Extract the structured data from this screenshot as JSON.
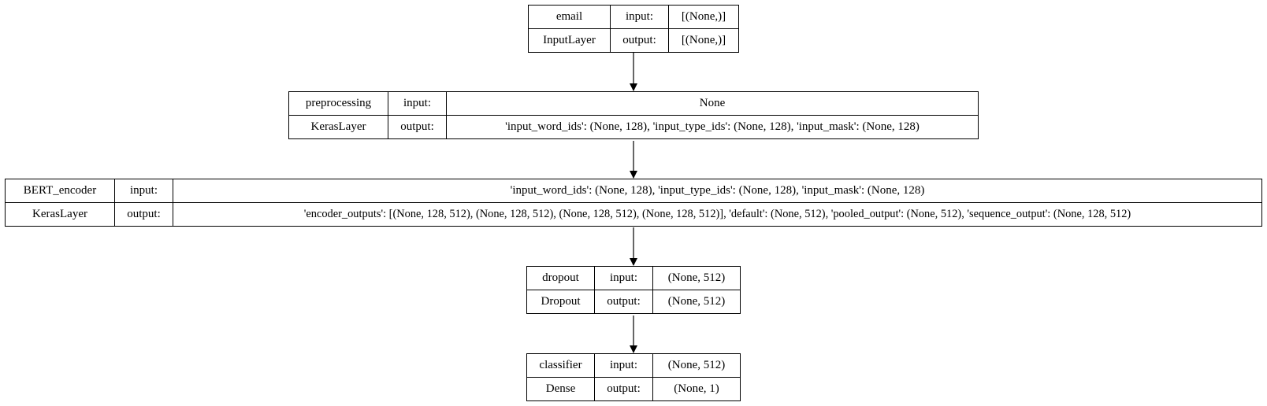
{
  "layers": [
    {
      "name": "email",
      "class": "InputLayer",
      "input_label": "input:",
      "output_label": "output:",
      "input": "[(None,)]",
      "output": "[(None,)]"
    },
    {
      "name": "preprocessing",
      "class": "KerasLayer",
      "input_label": "input:",
      "output_label": "output:",
      "input": "None",
      "output": "'input_word_ids': (None, 128), 'input_type_ids': (None, 128), 'input_mask': (None, 128)"
    },
    {
      "name": "BERT_encoder",
      "class": "KerasLayer",
      "input_label": "input:",
      "output_label": "output:",
      "input": "'input_word_ids': (None, 128), 'input_type_ids': (None, 128), 'input_mask': (None, 128)",
      "output": "'encoder_outputs': [(None, 128, 512), (None, 128, 512), (None, 128, 512), (None, 128, 512)], 'default': (None, 512), 'pooled_output': (None, 512), 'sequence_output': (None, 128, 512)"
    },
    {
      "name": "dropout",
      "class": "Dropout",
      "input_label": "input:",
      "output_label": "output:",
      "input": "(None, 512)",
      "output": "(None, 512)"
    },
    {
      "name": "classifier",
      "class": "Dense",
      "input_label": "input:",
      "output_label": "output:",
      "input": "(None, 512)",
      "output": "(None, 1)"
    }
  ]
}
